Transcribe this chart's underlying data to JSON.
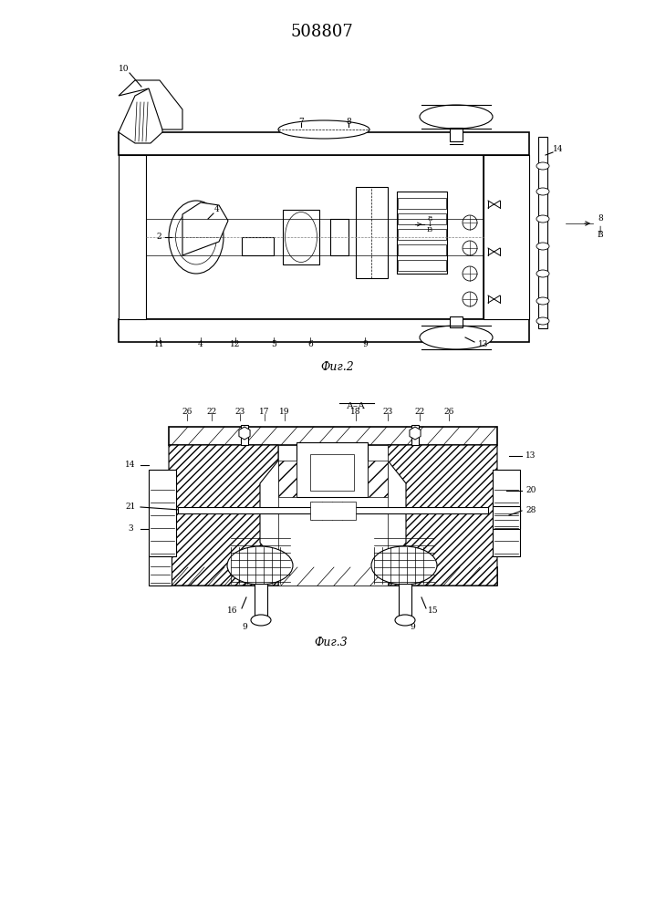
{
  "title": "508807",
  "bg_color": "#ffffff",
  "fig2_label": "Фиг.2",
  "fig3_label": "Фиг.3",
  "aa_label": "А–А"
}
